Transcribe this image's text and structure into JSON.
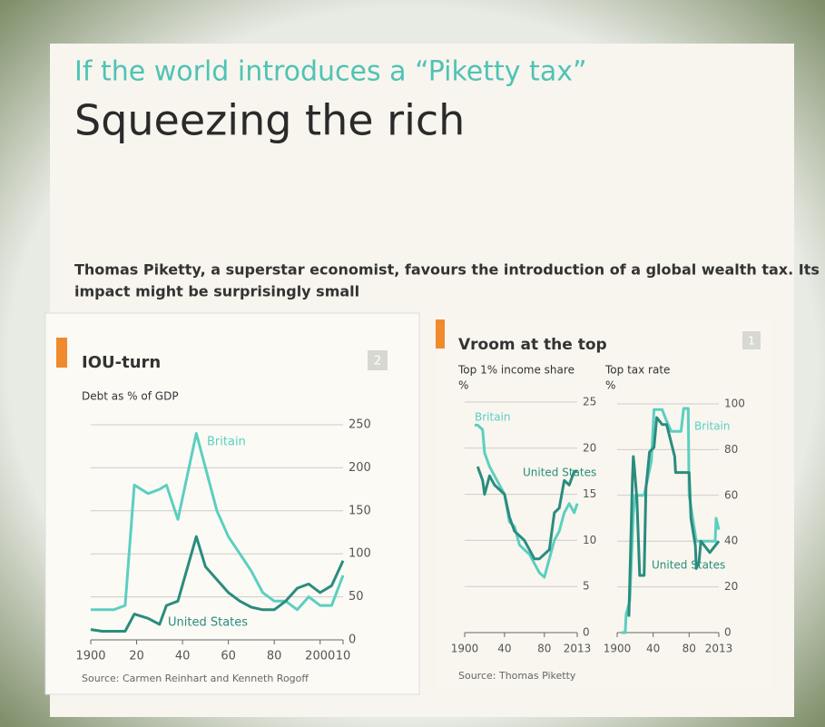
{
  "header": {
    "kicker": "If the world introduces a “Piketty tax”",
    "headline": "Squeezing the rich",
    "standfirst": [
      "Thomas Piketty, a superstar economist, favours the introduction of a global wealth tax. Its",
      "impact might be surprisingly small"
    ]
  },
  "panels": [
    {
      "title": "IOU-turn",
      "badge": "2",
      "source": "Source: Carmen Reinhart and Kenneth Rogoff"
    },
    {
      "title": "Vroom at the top",
      "badge": "1",
      "source": "Source: Thomas Piketty"
    }
  ],
  "chart_data": [
    {
      "type": "line",
      "subtitle": "Debt as % of GDP",
      "xlim": [
        1900,
        2010
      ],
      "ylim": [
        0,
        250
      ],
      "xticks": [
        1900,
        {
          "value": 1920,
          "label": "20"
        },
        {
          "value": 1940,
          "label": "40"
        },
        {
          "value": 1960,
          "label": "60"
        },
        {
          "value": 1980,
          "label": "80"
        },
        2000,
        {
          "value": 2010,
          "label": "10"
        }
      ],
      "yticks": [
        0,
        50,
        100,
        150,
        200,
        250
      ],
      "grid": true,
      "series": [
        {
          "name": "Britain",
          "color": "#5ccfc0",
          "x": [
            1900,
            1905,
            1910,
            1915,
            1919,
            1925,
            1930,
            1933,
            1938,
            1946,
            1950,
            1955,
            1960,
            1965,
            1970,
            1975,
            1980,
            1985,
            1990,
            1995,
            2000,
            2005,
            2010
          ],
          "values": [
            35,
            35,
            35,
            40,
            180,
            170,
            175,
            180,
            140,
            240,
            200,
            150,
            120,
            100,
            80,
            55,
            45,
            45,
            35,
            50,
            40,
            40,
            75
          ]
        },
        {
          "name": "United States",
          "color": "#2a8c7e",
          "x": [
            1900,
            1905,
            1910,
            1915,
            1919,
            1925,
            1930,
            1933,
            1938,
            1946,
            1950,
            1955,
            1960,
            1965,
            1970,
            1975,
            1980,
            1985,
            1990,
            1995,
            2000,
            2005,
            2010
          ],
          "values": [
            12,
            10,
            10,
            10,
            30,
            25,
            18,
            40,
            45,
            120,
            85,
            70,
            55,
            45,
            38,
            35,
            35,
            45,
            60,
            65,
            55,
            63,
            92
          ]
        }
      ]
    },
    {
      "type": "line",
      "subtitle": "Top 1% income share",
      "y_unit": "%",
      "xlim": [
        1900,
        2013
      ],
      "ylim": [
        0,
        25
      ],
      "xticks": [
        1900,
        {
          "value": 1940,
          "label": "40"
        },
        {
          "value": 1980,
          "label": "80"
        },
        2013
      ],
      "yticks": [
        0,
        5,
        10,
        15,
        20,
        25
      ],
      "grid": true,
      "series": [
        {
          "name": "Britain",
          "color": "#5ccfc0",
          "x": [
            1910,
            1913,
            1918,
            1920,
            1925,
            1930,
            1935,
            1940,
            1945,
            1950,
            1955,
            1960,
            1965,
            1970,
            1975,
            1980,
            1985,
            1990,
            1995,
            2000,
            2005,
            2010,
            2013
          ],
          "values": [
            22.5,
            22.5,
            22,
            19.5,
            18,
            17,
            16,
            15,
            12,
            11.5,
            9.5,
            9,
            8.5,
            7.5,
            6.5,
            6,
            8,
            10,
            11,
            13,
            14,
            13,
            14
          ]
        },
        {
          "name": "United States",
          "color": "#2a8c7e",
          "x": [
            1913,
            1918,
            1920,
            1925,
            1930,
            1935,
            1940,
            1945,
            1950,
            1955,
            1960,
            1965,
            1970,
            1975,
            1980,
            1985,
            1990,
            1995,
            2000,
            2005,
            2010,
            2013
          ],
          "values": [
            18,
            16.5,
            15,
            17,
            16,
            15.5,
            15,
            12.5,
            11,
            10.5,
            10,
            9,
            8,
            8,
            8.5,
            9,
            13,
            13.5,
            16.5,
            16,
            17.5,
            17.5
          ]
        }
      ]
    },
    {
      "type": "line",
      "subtitle": "Top tax rate",
      "y_unit": "%",
      "xlim": [
        1900,
        2013
      ],
      "ylim": [
        0,
        100
      ],
      "xticks": [
        1900,
        {
          "value": 1940,
          "label": "40"
        },
        {
          "value": 1980,
          "label": "80"
        },
        2013
      ],
      "yticks": [
        0,
        20,
        40,
        60,
        80,
        100
      ],
      "grid": true,
      "series": [
        {
          "name": "Britain",
          "color": "#5ccfc0",
          "x": [
            1905,
            1909,
            1910,
            1914,
            1918,
            1920,
            1925,
            1930,
            1938,
            1941,
            1945,
            1950,
            1955,
            1960,
            1971,
            1974,
            1979,
            1980,
            1988,
            2009,
            2010,
            2013
          ],
          "values": [
            0,
            0,
            8,
            14,
            52,
            60,
            60,
            60,
            75,
            97.5,
            97.5,
            97.5,
            92.5,
            88,
            88,
            98,
            98,
            60,
            40,
            40,
            50,
            45
          ]
        },
        {
          "name": "United States",
          "color": "#2a8c7e",
          "x": [
            1913,
            1917,
            1918,
            1919,
            1922,
            1925,
            1930,
            1932,
            1936,
            1941,
            1944,
            1950,
            1955,
            1964,
            1965,
            1980,
            1982,
            1987,
            1988,
            1991,
            1993,
            2003,
            2013
          ],
          "values": [
            7,
            67,
            77,
            73,
            58,
            25,
            25,
            63,
            79,
            81,
            94,
            91,
            91,
            77,
            70,
            70,
            50,
            38,
            28,
            31,
            40,
            35,
            40
          ]
        }
      ]
    }
  ]
}
